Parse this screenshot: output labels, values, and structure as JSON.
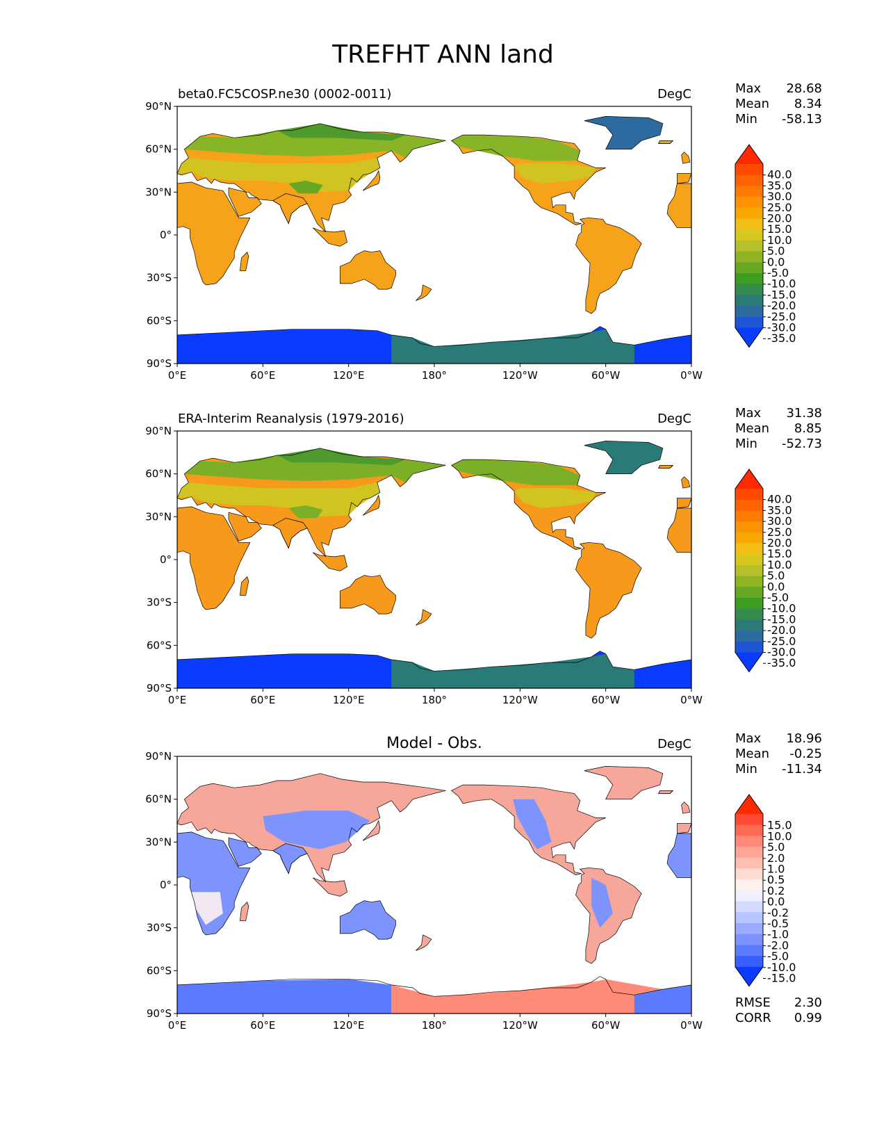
{
  "figure": {
    "title": "TREFHT ANN land"
  },
  "panels": [
    {
      "id": "test",
      "title_left": "beta0.FC5COSP.ne30 (0002-0011)",
      "title_center": "",
      "units": "DegC",
      "stats": [
        {
          "label": "Max",
          "value": "28.68"
        },
        {
          "label": "Mean",
          "value": "8.34"
        },
        {
          "label": "Min",
          "value": "-58.13"
        }
      ],
      "colorbar": {
        "labels": [
          "40.0",
          "35.0",
          "30.0",
          "25.0",
          "20.0",
          "15.0",
          "10.0",
          "5.0",
          "0.0",
          "-5.0",
          "-10.0",
          "-15.0",
          "-20.0",
          "-25.0",
          "-30.0",
          "-35.0"
        ],
        "colors": [
          "#ff2a00",
          "#ff4a00",
          "#ff6200",
          "#ff7a00",
          "#fb9400",
          "#f7a800",
          "#f3bf17",
          "#d7c81f",
          "#b5c02a",
          "#8eb426",
          "#66a823",
          "#3f9c22",
          "#358a4d",
          "#2a7a78",
          "#2c6a9f",
          "#1e55d6",
          "#0a3cff"
        ]
      },
      "extra_stats": []
    },
    {
      "id": "reference",
      "title_left": "ERA-Interim Reanalysis (1979-2016)",
      "title_center": "",
      "units": "DegC",
      "stats": [
        {
          "label": "Max",
          "value": "31.38"
        },
        {
          "label": "Mean",
          "value": "8.85"
        },
        {
          "label": "Min",
          "value": "-52.73"
        }
      ],
      "colorbar": {
        "labels": [
          "40.0",
          "35.0",
          "30.0",
          "25.0",
          "20.0",
          "15.0",
          "10.0",
          "5.0",
          "0.0",
          "-5.0",
          "-10.0",
          "-15.0",
          "-20.0",
          "-25.0",
          "-30.0",
          "-35.0"
        ],
        "colors": [
          "#ff2a00",
          "#ff4a00",
          "#ff6200",
          "#ff7a00",
          "#fb9400",
          "#f7a800",
          "#f3bf17",
          "#d7c81f",
          "#b5c02a",
          "#8eb426",
          "#66a823",
          "#3f9c22",
          "#358a4d",
          "#2a7a78",
          "#2c6a9f",
          "#1e55d6",
          "#0a3cff"
        ]
      },
      "extra_stats": []
    },
    {
      "id": "diff",
      "title_left": "",
      "title_center": "Model - Obs.",
      "units": "DegC",
      "stats": [
        {
          "label": "Max",
          "value": "18.96"
        },
        {
          "label": "Mean",
          "value": "-0.25"
        },
        {
          "label": "Min",
          "value": "-11.34"
        }
      ],
      "colorbar": {
        "labels": [
          "15.0",
          "10.0",
          "5.0",
          "2.0",
          "1.0",
          "0.5",
          "0.2",
          "0.0",
          "-0.2",
          "-0.5",
          "-1.0",
          "-2.0",
          "-5.0",
          "-10.0",
          "-15.0"
        ],
        "colors": [
          "#ff2a00",
          "#ff4a33",
          "#ff6a55",
          "#ff8a77",
          "#ffa596",
          "#ffc0b2",
          "#ffdcd2",
          "#fff2ee",
          "#eef0ff",
          "#d4dbff",
          "#b8c4ff",
          "#9bacff",
          "#7d94ff",
          "#5d7bff",
          "#3a5fff",
          "#0a3cff"
        ]
      },
      "extra_stats": [
        {
          "label": "RMSE",
          "value": "2.30"
        },
        {
          "label": "CORR",
          "value": "0.99"
        }
      ]
    }
  ],
  "axes": {
    "yticks": [
      "90°N",
      "60°N",
      "30°N",
      "0°",
      "30°S",
      "60°S",
      "90°S"
    ],
    "xticks": [
      "0°E",
      "60°E",
      "120°E",
      "180°",
      "120°W",
      "60°W",
      "0°W"
    ]
  },
  "map_colors": {
    "test": {
      "tropics": "#f7a21b",
      "midlat": "#d2c420",
      "boreal": "#88b428",
      "arctic": "#4e9a2c",
      "antarctica": "#0a3cff",
      "ant_edge": "#2a7a78",
      "greenland": "#2c6a9f",
      "tibet": "#66a823"
    },
    "reference": {
      "tropics": "#f79a1b",
      "midlat": "#d2c420",
      "boreal": "#7caf28",
      "arctic": "#4e9a2c",
      "antarctica": "#0a3cff",
      "ant_edge": "#2a7a78",
      "greenland": "#2a7a78",
      "tibet": "#7caf28"
    },
    "diff": {
      "warm": "#f7a69a",
      "cold": "#7d94ff",
      "neutral": "#f2e8f2",
      "antarctica_w": "#5d7bff",
      "antarctica_e": "#ff8a77"
    }
  }
}
